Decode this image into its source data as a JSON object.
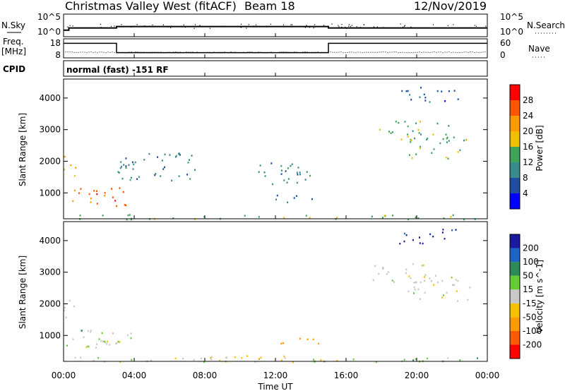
{
  "header": {
    "station": "Christmas Valley West (fitACF)",
    "beam": "Beam 18",
    "date": "12/Nov/2019"
  },
  "noise_panel": {
    "left_label": "N.Sky",
    "right_label": "N.Search",
    "left_ticks": [
      "10^5",
      "10^0"
    ],
    "right_ticks": [
      "10^5",
      "10^0"
    ]
  },
  "freq_panel": {
    "left_label_line1": "Freq.",
    "left_label_line2": "[MHz]",
    "right_label": "Nave",
    "left_ticks": [
      "18",
      "8"
    ],
    "right_ticks": [
      "60",
      "0"
    ]
  },
  "cpid_panel": {
    "label": "CPID",
    "mode_text": "normal (fast) -151 RF"
  },
  "x_axis": {
    "label": "Time UT",
    "ticks": [
      "00:00",
      "04:00",
      "08:00",
      "12:00",
      "16:00",
      "20:00",
      "00:00"
    ]
  },
  "colors": {
    "power": [
      "#0000ff",
      "#1e4ea0",
      "#3a8c8c",
      "#3fa35a",
      "#f0c000",
      "#ff9900",
      "#ff5500",
      "#ff0000"
    ],
    "velocity": [
      "#ff0000",
      "#ff5a00",
      "#ff9a00",
      "#f5c200",
      "#c8c8c8",
      "#66cc33",
      "#2e8b57",
      "#1e64c8",
      "#1a1aa0"
    ]
  },
  "chart_data": [
    {
      "type": "line",
      "title": "N.Sky / N.Search",
      "x_range": [
        "00:00",
        "00:00"
      ],
      "y_scale": "log",
      "y_ticks": [
        "10^0",
        "10^5"
      ],
      "series": [
        {
          "name": "N.Sky",
          "x": [
            0,
            0.3,
            0.3,
            3,
            3,
            15,
            15,
            24
          ],
          "y": [
            1,
            1,
            1.6,
            1.6,
            2.0,
            2.0,
            1.6,
            1.6
          ]
        }
      ]
    },
    {
      "type": "line",
      "title": "Freq. [MHz] / Nave",
      "y_ticks": [
        "8",
        "18"
      ],
      "series": [
        {
          "name": "Freq. [MHz]",
          "x": [
            0,
            3,
            3,
            15,
            15,
            24
          ],
          "y": [
            16,
            16,
            10,
            10,
            16,
            16
          ]
        },
        {
          "name": "Nave",
          "x": [
            0,
            24
          ],
          "y": [
            6,
            6
          ]
        }
      ]
    },
    {
      "type": "heatmap",
      "quantity": "Power",
      "xlabel": "Time UT",
      "ylabel": "Slant Range [km]",
      "colorbar_label": "Power [dB]",
      "colorbar_ticks": [
        "4",
        "8",
        "12",
        "16",
        "20",
        "24",
        "28"
      ],
      "y_ticks": [
        "1000",
        "2000",
        "3000",
        "4000"
      ],
      "ylim": [
        180,
        4600
      ],
      "regions": [
        {
          "t0": 0.1,
          "t1": 3.8,
          "r0": 600,
          "r1": 1200,
          "level": 6
        },
        {
          "t0": 0.0,
          "t1": 0.8,
          "r0": 1500,
          "r1": 2200,
          "level": 5
        },
        {
          "t0": 0.5,
          "t1": 6.0,
          "r0": 180,
          "r1": 350,
          "level": 3
        },
        {
          "t0": 6.0,
          "t1": 24.0,
          "r0": 180,
          "r1": 320,
          "level": 3
        },
        {
          "t0": 12.0,
          "t1": 14.8,
          "r0": 700,
          "r1": 950,
          "level": 1
        },
        {
          "t0": 3.0,
          "t1": 7.5,
          "r0": 1400,
          "r1": 2300,
          "level": 2
        },
        {
          "t0": 11.0,
          "t1": 14.5,
          "r0": 1300,
          "r1": 2000,
          "level": 2
        },
        {
          "t0": 17.5,
          "t1": 22.0,
          "r0": 2700,
          "r1": 3300,
          "level": 3
        },
        {
          "t0": 19.5,
          "t1": 23.0,
          "r0": 2100,
          "r1": 2800,
          "level": 3
        },
        {
          "t0": 19.0,
          "t1": 22.5,
          "r0": 3900,
          "r1": 4400,
          "level": 1
        }
      ]
    },
    {
      "type": "heatmap",
      "quantity": "Velocity",
      "xlabel": "Time UT",
      "ylabel": "Slant Range [km]",
      "colorbar_label": "Velocity [m s^-1]",
      "colorbar_ticks": [
        "-200",
        "-100",
        "-50",
        "-15",
        "15",
        "50",
        "100",
        "200"
      ],
      "y_ticks": [
        "1000",
        "2000",
        "3000",
        "4000"
      ],
      "ylim": [
        180,
        4600
      ],
      "regions": [
        {
          "t0": 0.1,
          "t1": 3.8,
          "r0": 600,
          "r1": 1200,
          "level": 4
        },
        {
          "t0": 0.8,
          "t1": 2.4,
          "r0": 650,
          "r1": 1250,
          "level": 5
        },
        {
          "t0": 0.0,
          "t1": 0.8,
          "r0": 1500,
          "r1": 2200,
          "level": 4
        },
        {
          "t0": 0.5,
          "t1": 10.0,
          "r0": 180,
          "r1": 350,
          "level": 4
        },
        {
          "t0": 8.0,
          "t1": 16.0,
          "r0": 180,
          "r1": 380,
          "level": 3
        },
        {
          "t0": 14.0,
          "t1": 24.0,
          "r0": 180,
          "r1": 320,
          "level": 5
        },
        {
          "t0": 12.0,
          "t1": 14.8,
          "r0": 700,
          "r1": 950,
          "level": 2
        },
        {
          "t0": 17.5,
          "t1": 22.0,
          "r0": 2700,
          "r1": 3300,
          "level": 4
        },
        {
          "t0": 19.5,
          "t1": 23.0,
          "r0": 2100,
          "r1": 2800,
          "level": 4
        },
        {
          "t0": 19.0,
          "t1": 22.5,
          "r0": 3900,
          "r1": 4400,
          "level": 8
        }
      ]
    }
  ]
}
